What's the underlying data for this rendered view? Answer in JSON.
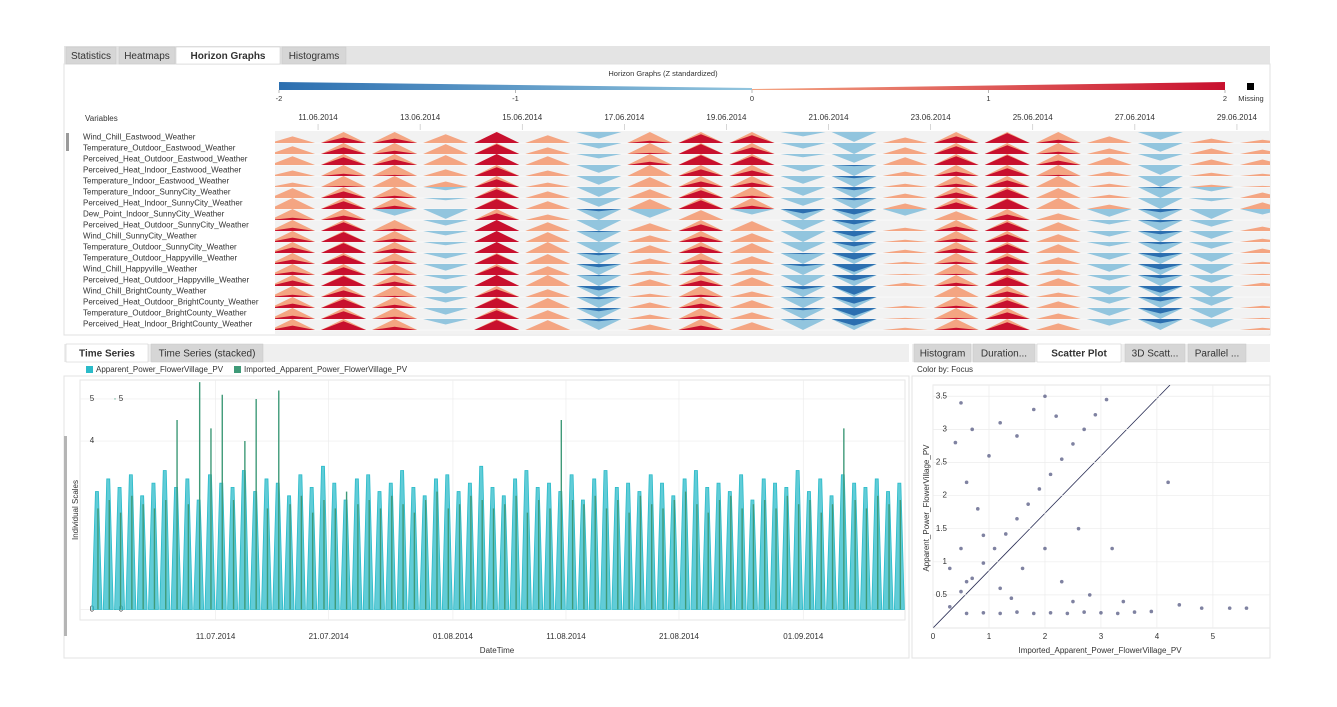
{
  "top_tabs": {
    "labels": [
      "Statistics",
      "Heatmaps",
      "Horizon Graphs",
      "Histograms"
    ],
    "active": 2
  },
  "time_series_tabs": {
    "labels": [
      "Time Series",
      "Time Series (stacked)"
    ],
    "active": 0
  },
  "scatter_tabs": {
    "labels": [
      "Histogram",
      "Duration...",
      "Scatter Plot",
      "3D Scatt...",
      "Parallel ..."
    ],
    "active": 2
  },
  "scatter_color_by": "Color by: Focus",
  "chart_data": [
    {
      "type": "horizon",
      "title": "Horizon Graphs (Z standardized)",
      "legend_ticks": [
        -2,
        -1,
        0,
        1,
        2
      ],
      "missing_label": "Missing",
      "missing_color": "#000000",
      "row_header": "Variables",
      "colors_positive": [
        "#f4a582",
        "#c8102e"
      ],
      "colors_negative": [
        "#92c5de",
        "#2c6fb0"
      ],
      "xlim": [
        "10.06.2014",
        "30.06.2014"
      ],
      "xticks": [
        "11.06.2014",
        "13.06.2014",
        "15.06.2014",
        "17.06.2014",
        "19.06.2014",
        "21.06.2014",
        "23.06.2014",
        "25.06.2014",
        "27.06.2014",
        "29.06.2014"
      ],
      "series": [
        {
          "name": "Wind_Chill_Eastwood_Weather",
          "values": [
            0.6,
            1.5,
            1.4,
            0.8,
            2.0,
            0.7,
            -0.6,
            1.2,
            1.8,
            1.7,
            -0.4,
            -0.9,
            0.5,
            1.6,
            1.9,
            1.3,
            0.6,
            -0.7,
            0.4,
            0.3
          ]
        },
        {
          "name": "Temperature_Outdoor_Eastwood_Weather",
          "values": [
            0.7,
            1.6,
            1.3,
            0.9,
            1.9,
            0.6,
            -0.5,
            1.1,
            1.9,
            1.6,
            -0.5,
            -1.0,
            0.6,
            1.7,
            1.8,
            1.2,
            0.5,
            -0.8,
            0.5,
            0.4
          ]
        },
        {
          "name": "Perceived_Heat_Outdoor_Eastwood_Weather",
          "values": [
            0.8,
            1.7,
            1.5,
            0.9,
            2.0,
            0.8,
            -0.4,
            1.3,
            1.9,
            1.8,
            -0.3,
            -0.8,
            0.7,
            1.8,
            1.9,
            1.4,
            0.7,
            -0.6,
            0.5,
            0.5
          ]
        },
        {
          "name": "Perceived_Heat_Indoor_Eastwood_Weather",
          "values": [
            0.5,
            1.2,
            1.1,
            0.6,
            1.8,
            0.5,
            -0.7,
            1.0,
            1.6,
            1.5,
            -0.6,
            -1.1,
            0.4,
            1.4,
            1.7,
            1.1,
            0.4,
            -0.9,
            0.3,
            0.2
          ]
        },
        {
          "name": "Temperature_Indoor_Eastwood_Weather",
          "values": [
            0.4,
            1.1,
            1.0,
            0.5,
            1.7,
            0.4,
            -0.8,
            0.9,
            1.5,
            1.4,
            -0.7,
            -1.2,
            0.3,
            1.3,
            1.6,
            1.0,
            0.3,
            -1.0,
            0.2,
            0.1
          ]
        },
        {
          "name": "Temperature_Indoor_SunnyCity_Weather",
          "values": [
            0.9,
            1.6,
            1.2,
            -0.3,
            1.8,
            0.6,
            -0.9,
            0.8,
            1.7,
            1.2,
            -0.8,
            -1.3,
            0.4,
            1.5,
            1.8,
            0.9,
            0.3,
            -1.1,
            -0.4,
            0.5
          ]
        },
        {
          "name": "Perceived_Heat_Indoor_SunnyCity_Weather",
          "values": [
            1.0,
            1.7,
            1.3,
            -0.2,
            1.9,
            0.7,
            -0.8,
            0.9,
            1.8,
            1.3,
            -0.7,
            -1.2,
            0.5,
            1.6,
            1.9,
            1.0,
            0.4,
            -1.0,
            -0.3,
            0.6
          ]
        },
        {
          "name": "Dew_Point_Indoor_SunnyCity_Weather",
          "values": [
            1.2,
            1.4,
            -0.6,
            -0.9,
            1.6,
            0.5,
            -1.2,
            -0.8,
            0.9,
            -0.5,
            -1.4,
            -1.5,
            -0.6,
            0.8,
            1.5,
            0.6,
            -0.7,
            -1.3,
            -0.9,
            -0.5
          ]
        },
        {
          "name": "Perceived_Heat_Outdoor_SunnyCity_Weather",
          "values": [
            1.3,
            1.8,
            1.2,
            -0.5,
            2.0,
            0.8,
            -1.0,
            0.7,
            1.6,
            0.9,
            -0.9,
            -1.4,
            0.3,
            1.4,
            1.8,
            0.8,
            -0.4,
            -1.2,
            -0.6,
            0.4
          ]
        },
        {
          "name": "Wind_Chill_SunnyCity_Weather",
          "values": [
            1.4,
            1.9,
            1.3,
            -0.4,
            2.0,
            0.9,
            -1.1,
            0.6,
            1.5,
            0.8,
            -1.0,
            -1.5,
            0.2,
            1.3,
            1.7,
            0.7,
            -0.5,
            -1.3,
            -0.7,
            0.3
          ]
        },
        {
          "name": "Temperature_Outdoor_SunnyCity_Weather",
          "values": [
            1.5,
            1.9,
            1.4,
            -0.3,
            2.0,
            1.0,
            -1.0,
            0.7,
            1.6,
            0.9,
            -0.9,
            -1.4,
            0.3,
            1.4,
            1.8,
            0.8,
            -0.4,
            -1.2,
            -0.6,
            0.4
          ]
        },
        {
          "name": "Temperature_Outdoor_Happyville_Weather",
          "values": [
            1.4,
            1.8,
            1.3,
            -0.5,
            1.9,
            0.9,
            -1.2,
            0.5,
            1.4,
            0.7,
            -1.1,
            -1.6,
            0.2,
            1.2,
            1.7,
            0.6,
            -0.6,
            -1.4,
            -0.8,
            0.2
          ]
        },
        {
          "name": "Wind_Chill_Happyville_Weather",
          "values": [
            1.3,
            1.7,
            1.2,
            -0.6,
            1.8,
            0.8,
            -1.3,
            0.4,
            1.3,
            0.6,
            -1.2,
            -1.7,
            0.1,
            1.1,
            1.6,
            0.5,
            -0.7,
            -1.5,
            -0.9,
            0.1
          ]
        },
        {
          "name": "Perceived_Heat_Outdoor_Happyville_Weather",
          "values": [
            1.5,
            1.9,
            1.4,
            -0.4,
            2.0,
            1.0,
            -1.1,
            0.6,
            1.5,
            0.8,
            -1.0,
            -1.5,
            0.3,
            1.3,
            1.8,
            0.7,
            -0.5,
            -1.3,
            -0.7,
            0.3
          ]
        },
        {
          "name": "Wind_Chill_BrightCounty_Weather",
          "values": [
            1.2,
            1.6,
            1.1,
            -0.7,
            1.7,
            0.7,
            -1.4,
            0.3,
            1.2,
            0.5,
            -1.3,
            -1.8,
            0.0,
            1.0,
            1.5,
            0.4,
            -0.8,
            -1.6,
            -1.0,
            0.0
          ]
        },
        {
          "name": "Perceived_Heat_Outdoor_BrightCounty_Weather",
          "values": [
            1.4,
            1.8,
            1.3,
            -0.5,
            1.9,
            0.9,
            -1.2,
            0.5,
            1.4,
            0.7,
            -1.1,
            -1.6,
            0.2,
            1.2,
            1.7,
            0.6,
            -0.6,
            -1.4,
            -0.8,
            0.2
          ]
        },
        {
          "name": "Temperature_Outdoor_BrightCounty_Weather",
          "values": [
            1.3,
            1.7,
            1.2,
            -0.6,
            1.8,
            0.8,
            -1.3,
            0.4,
            1.3,
            0.6,
            -1.2,
            -1.7,
            0.1,
            1.1,
            1.6,
            0.5,
            -0.7,
            -1.5,
            -0.9,
            0.1
          ]
        },
        {
          "name": "Perceived_Heat_Indoor_BrightCounty_Weather",
          "values": [
            1.4,
            1.8,
            1.3,
            -0.5,
            1.9,
            0.9,
            -1.2,
            0.5,
            1.4,
            0.7,
            -1.1,
            -1.6,
            0.2,
            1.2,
            1.7,
            0.6,
            -0.6,
            -1.4,
            -0.8,
            0.2
          ]
        }
      ]
    },
    {
      "type": "line",
      "xlabel": "DateTime",
      "ylabel": "Individual Scales",
      "x": [
        "30.06.2014",
        "01.07.2014",
        "02.07.2014",
        "03.07.2014",
        "04.07.2014",
        "05.07.2014",
        "06.07.2014",
        "07.07.2014",
        "08.07.2014",
        "09.07.2014",
        "10.07.2014",
        "11.07.2014",
        "12.07.2014",
        "13.07.2014",
        "14.07.2014",
        "15.07.2014",
        "16.07.2014",
        "17.07.2014",
        "18.07.2014",
        "19.07.2014",
        "20.07.2014",
        "21.07.2014",
        "22.07.2014",
        "23.07.2014",
        "24.07.2014",
        "25.07.2014",
        "26.07.2014",
        "27.07.2014",
        "28.07.2014",
        "29.07.2014",
        "30.07.2014",
        "31.07.2014",
        "01.08.2014",
        "02.08.2014",
        "03.08.2014",
        "04.08.2014",
        "05.08.2014",
        "06.08.2014",
        "07.08.2014",
        "08.08.2014",
        "09.08.2014",
        "10.08.2014",
        "11.08.2014",
        "12.08.2014",
        "13.08.2014",
        "14.08.2014",
        "15.08.2014",
        "16.08.2014",
        "17.08.2014",
        "18.08.2014",
        "19.08.2014",
        "20.08.2014",
        "21.08.2014",
        "22.08.2014",
        "23.08.2014",
        "24.08.2014",
        "25.08.2014",
        "26.08.2014",
        "27.08.2014",
        "28.08.2014",
        "29.08.2014",
        "30.08.2014",
        "31.08.2014",
        "01.09.2014",
        "02.09.2014",
        "03.09.2014",
        "04.09.2014",
        "05.09.2014",
        "06.09.2014",
        "07.09.2014",
        "08.09.2014",
        "09.09.2014"
      ],
      "xlim": [
        "29.06.2014",
        "10.09.2014"
      ],
      "xticks": [
        "11.07.2014",
        "21.07.2014",
        "01.08.2014",
        "11.08.2014",
        "21.08.2014",
        "01.09.2014"
      ],
      "ylim": [
        -0.25,
        5.45
      ],
      "yticks": [
        0,
        4,
        5
      ],
      "y2lim": [
        -0.25,
        5.45
      ],
      "y2ticks": [
        0,
        5
      ],
      "grid": true,
      "series": [
        {
          "name": "Apparent_Power_FlowerVillage_PV",
          "color": "#2bbbc9",
          "values": [
            2.8,
            3.1,
            2.9,
            3.2,
            2.7,
            3.0,
            3.3,
            2.9,
            3.1,
            2.6,
            3.2,
            3.0,
            2.9,
            3.3,
            2.8,
            3.1,
            3.0,
            2.7,
            3.2,
            2.9,
            3.4,
            3.0,
            2.6,
            3.1,
            3.2,
            2.8,
            3.0,
            3.3,
            2.9,
            2.7,
            3.1,
            3.2,
            2.8,
            3.0,
            3.4,
            2.9,
            2.7,
            3.1,
            3.3,
            2.9,
            3.0,
            2.8,
            3.2,
            2.6,
            3.1,
            3.3,
            2.9,
            3.0,
            2.8,
            3.2,
            3.0,
            2.7,
            3.1,
            3.3,
            2.9,
            3.0,
            2.8,
            3.2,
            2.6,
            3.1,
            3.0,
            2.9,
            3.3,
            2.8,
            3.1,
            2.7,
            3.2,
            3.0,
            2.9,
            3.1,
            2.8,
            3.0
          ]
        },
        {
          "name": "Imported_Apparent_Power_FlowerVillage_PV",
          "color": "#3f9a78",
          "axis": "y2",
          "values": [
            2.4,
            2.6,
            2.3,
            2.7,
            2.5,
            2.4,
            2.6,
            4.5,
            2.5,
            5.4,
            4.3,
            5.1,
            2.6,
            4.0,
            5.0,
            2.4,
            5.2,
            2.5,
            2.7,
            2.3,
            2.6,
            2.4,
            2.8,
            2.5,
            2.6,
            2.4,
            2.7,
            2.5,
            2.3,
            2.6,
            2.8,
            2.4,
            2.5,
            2.7,
            2.6,
            2.4,
            2.5,
            2.7,
            2.3,
            2.6,
            2.4,
            4.5,
            2.6,
            2.5,
            2.7,
            2.4,
            2.6,
            2.3,
            2.7,
            2.5,
            2.4,
            2.6,
            2.8,
            2.5,
            2.3,
            2.6,
            2.7,
            2.4,
            2.5,
            2.6,
            2.4,
            2.7,
            2.5,
            2.6,
            2.3,
            2.5,
            4.3,
            2.6,
            2.4,
            2.7,
            2.5,
            2.6
          ]
        }
      ]
    },
    {
      "type": "scatter",
      "xlabel": "Imported_Apparent_Power_FlowerVillage_PV",
      "ylabel": "Apparent_Power_FlowerVillage_PV",
      "color": "#3b3f6e",
      "grid": true,
      "xlim": [
        0,
        6.02
      ],
      "ylim": [
        0,
        3.67
      ],
      "xticks": [
        0,
        1,
        2,
        3,
        4,
        5
      ],
      "yticks": [
        0.5,
        1,
        1.5,
        2,
        2.5,
        3,
        3.5
      ],
      "x": [
        0.3,
        0.5,
        0.7,
        0.9,
        1.1,
        1.3,
        1.5,
        1.7,
        1.9,
        2.1,
        2.3,
        2.5,
        2.7,
        2.9,
        3.1,
        0.6,
        0.9,
        1.2,
        1.5,
        1.8,
        2.1,
        2.4,
        2.7,
        3.0,
        3.3,
        3.6,
        0.4,
        0.5,
        0.6,
        0.8,
        0.7,
        1.0,
        1.2,
        0.9,
        1.5,
        1.8,
        2.0,
        2.2,
        0.5,
        0.3,
        0.6,
        1.2,
        1.6,
        2.0,
        2.3,
        2.6,
        2.8,
        3.2,
        3.4,
        4.2,
        4.8,
        5.3,
        5.6,
        3.9,
        4.4,
        1.4,
        2.5
      ],
      "y": [
        0.32,
        0.55,
        0.75,
        0.98,
        1.2,
        1.42,
        1.65,
        1.87,
        2.1,
        2.32,
        2.55,
        2.78,
        3.0,
        3.22,
        3.45,
        0.22,
        0.23,
        0.22,
        0.24,
        0.22,
        0.23,
        0.22,
        0.24,
        0.23,
        0.22,
        0.24,
        2.8,
        3.4,
        2.2,
        1.8,
        3.0,
        2.6,
        3.1,
        1.4,
        2.9,
        3.3,
        3.5,
        3.2,
        1.2,
        0.9,
        0.7,
        0.6,
        0.9,
        1.2,
        0.7,
        1.5,
        0.5,
        1.2,
        0.4,
        2.2,
        0.3,
        0.3,
        0.3,
        0.25,
        0.35,
        0.45,
        0.4
      ]
    }
  ]
}
